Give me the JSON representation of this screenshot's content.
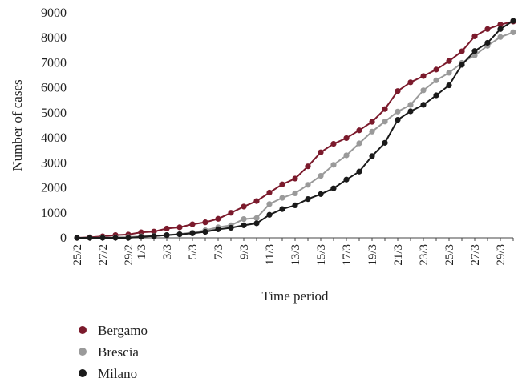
{
  "chart_data": {
    "type": "line",
    "title": "",
    "xlabel": "Time period",
    "ylabel": "Number of cases",
    "ylim": [
      0,
      9000
    ],
    "yticks": [
      0,
      1000,
      2000,
      3000,
      4000,
      5000,
      6000,
      7000,
      8000,
      9000
    ],
    "grid": false,
    "legend_position": "bottom-left",
    "x": [
      "25/2",
      "26/2",
      "27/2",
      "28/2",
      "29/2",
      "1/3",
      "2/3",
      "3/3",
      "4/3",
      "5/3",
      "6/3",
      "7/3",
      "8/3",
      "9/3",
      "10/3",
      "11/3",
      "12/3",
      "13/3",
      "14/3",
      "15/3",
      "16/3",
      "17/3",
      "18/3",
      "19/3",
      "20/3",
      "21/3",
      "22/3",
      "23/3",
      "24/3",
      "25/3",
      "26/3",
      "27/3",
      "28/3",
      "29/3",
      "30/3"
    ],
    "x_tick_labels": [
      "25/2",
      "27/2",
      "29/2",
      "1/3",
      "3/3",
      "5/3",
      "7/3",
      "9/3",
      "11/3",
      "13/3",
      "15/3",
      "17/3",
      "19/3",
      "21/3",
      "23/3",
      "25/3",
      "27/3",
      "29/3"
    ],
    "series": [
      {
        "name": "Bergamo",
        "color": "#7b1a2c",
        "values": [
          0,
          20,
          60,
          110,
          130,
          220,
          250,
          370,
          420,
          540,
          620,
          760,
          1000,
          1250,
          1470,
          1810,
          2140,
          2370,
          2860,
          3420,
          3760,
          3990,
          4300,
          4640,
          5150,
          5870,
          6220,
          6470,
          6730,
          7070,
          7460,
          8060,
          8350,
          8530,
          8650
        ]
      },
      {
        "name": "Brescia",
        "color": "#9a9a9a",
        "values": [
          0,
          0,
          10,
          20,
          30,
          60,
          80,
          110,
          150,
          210,
          300,
          420,
          500,
          750,
          790,
          1350,
          1600,
          1780,
          2120,
          2480,
          2920,
          3300,
          3780,
          4250,
          4650,
          5050,
          5320,
          5900,
          6300,
          6600,
          7000,
          7300,
          7680,
          8030,
          8220
        ]
      },
      {
        "name": "Milano",
        "color": "#1a1a1a",
        "values": [
          0,
          0,
          0,
          0,
          0,
          40,
          70,
          110,
          140,
          180,
          240,
          340,
          400,
          500,
          580,
          920,
          1150,
          1300,
          1550,
          1750,
          1980,
          2330,
          2650,
          3270,
          3800,
          4720,
          5060,
          5320,
          5700,
          6100,
          6920,
          7470,
          7800,
          8350,
          8680
        ]
      }
    ]
  }
}
